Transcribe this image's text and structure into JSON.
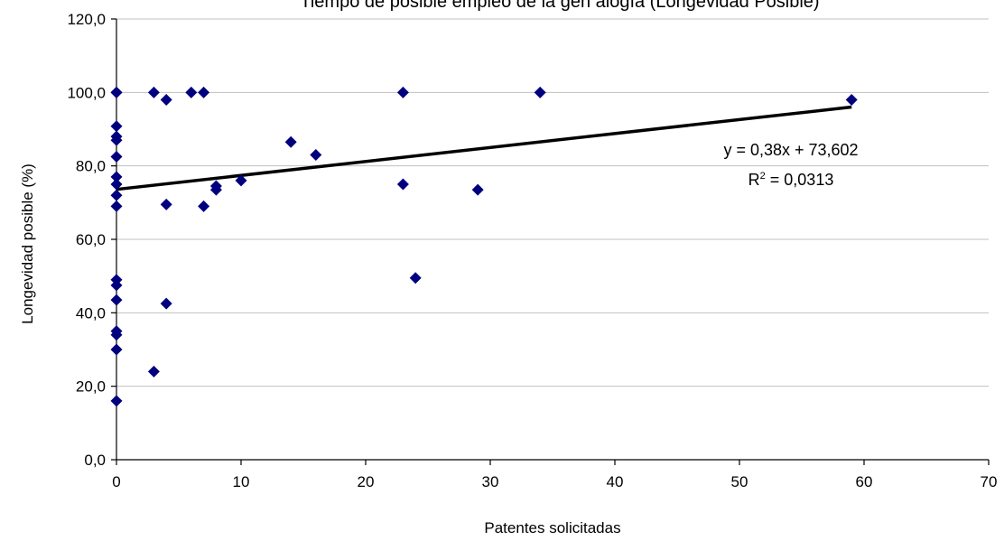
{
  "chart_data": {
    "type": "scatter",
    "title": "Tiempo de posible empleo de la gen alogía (Longevidad Posible)",
    "xlabel": "Patentes solicitadas",
    "ylabel": "Longevidad posible (%)",
    "xlim": [
      0,
      70
    ],
    "ylim": [
      0,
      120
    ],
    "x_ticks": [
      0,
      10,
      20,
      30,
      40,
      50,
      60,
      70
    ],
    "y_ticks": [
      0,
      20,
      40,
      60,
      80,
      100,
      120
    ],
    "x_tick_labels": [
      "0",
      "10",
      "20",
      "30",
      "40",
      "50",
      "60",
      "70"
    ],
    "y_tick_labels": [
      "0,0",
      "20,0",
      "40,0",
      "60,0",
      "80,0",
      "100,0",
      "120,0"
    ],
    "grid": "horizontal",
    "marker_color": "#00007f",
    "trend_color": "#000000",
    "points": [
      [
        0,
        100
      ],
      [
        0,
        100
      ],
      [
        0,
        90.8
      ],
      [
        0,
        88
      ],
      [
        0,
        87
      ],
      [
        0,
        82.5
      ],
      [
        0,
        77
      ],
      [
        0,
        75
      ],
      [
        0,
        72
      ],
      [
        0,
        69
      ],
      [
        0,
        49
      ],
      [
        0,
        47.5
      ],
      [
        0,
        43.5
      ],
      [
        0,
        35
      ],
      [
        0,
        34
      ],
      [
        0,
        30
      ],
      [
        0,
        16
      ],
      [
        3,
        100
      ],
      [
        3,
        24
      ],
      [
        4,
        98
      ],
      [
        4,
        69.5
      ],
      [
        4,
        42.5
      ],
      [
        6,
        100
      ],
      [
        7,
        100
      ],
      [
        7,
        69
      ],
      [
        8,
        74.5
      ],
      [
        8,
        73.5
      ],
      [
        10,
        76
      ],
      [
        14,
        86.5
      ],
      [
        16,
        83
      ],
      [
        23,
        100
      ],
      [
        23,
        75
      ],
      [
        24,
        49.5
      ],
      [
        29,
        73.5
      ],
      [
        34,
        100
      ],
      [
        59,
        98
      ]
    ],
    "trendline": {
      "slope": 0.38,
      "intercept": 73.602,
      "x_range": [
        0,
        59
      ],
      "equation": "y = 0,38x + 73,602",
      "r2_prefix": "R",
      "r2_sup": "2",
      "r2_rest": " = 0,0313"
    }
  }
}
